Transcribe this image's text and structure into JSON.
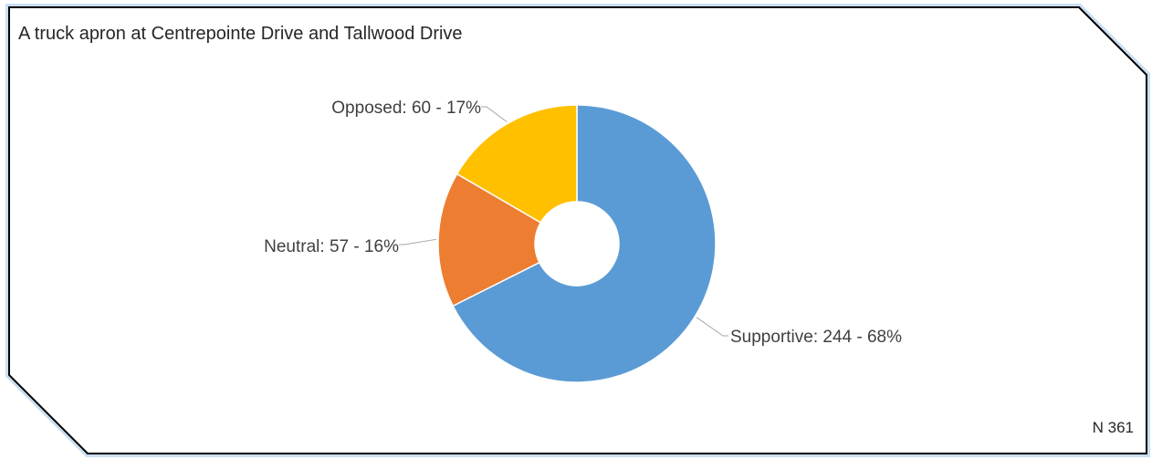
{
  "chart_data": {
    "type": "pie",
    "title": "A truck apron at Centrepointe Drive and Tallwood Drive",
    "donut": true,
    "slices": [
      {
        "label": "Supportive: 244 - 68%",
        "category": "Supportive",
        "value": 244,
        "percent": 68,
        "color": "#5b9bd5"
      },
      {
        "label": "Neutral: 57 - 16%",
        "category": "Neutral",
        "value": 57,
        "percent": 16,
        "color": "#ed7d31"
      },
      {
        "label": "Opposed: 60 - 17%",
        "category": "Opposed",
        "value": 60,
        "percent": 17,
        "color": "#ffc000"
      }
    ],
    "total_label": "N 361",
    "frame_border_color": "#000000",
    "frame_glow_color": "#9dc3e6"
  }
}
